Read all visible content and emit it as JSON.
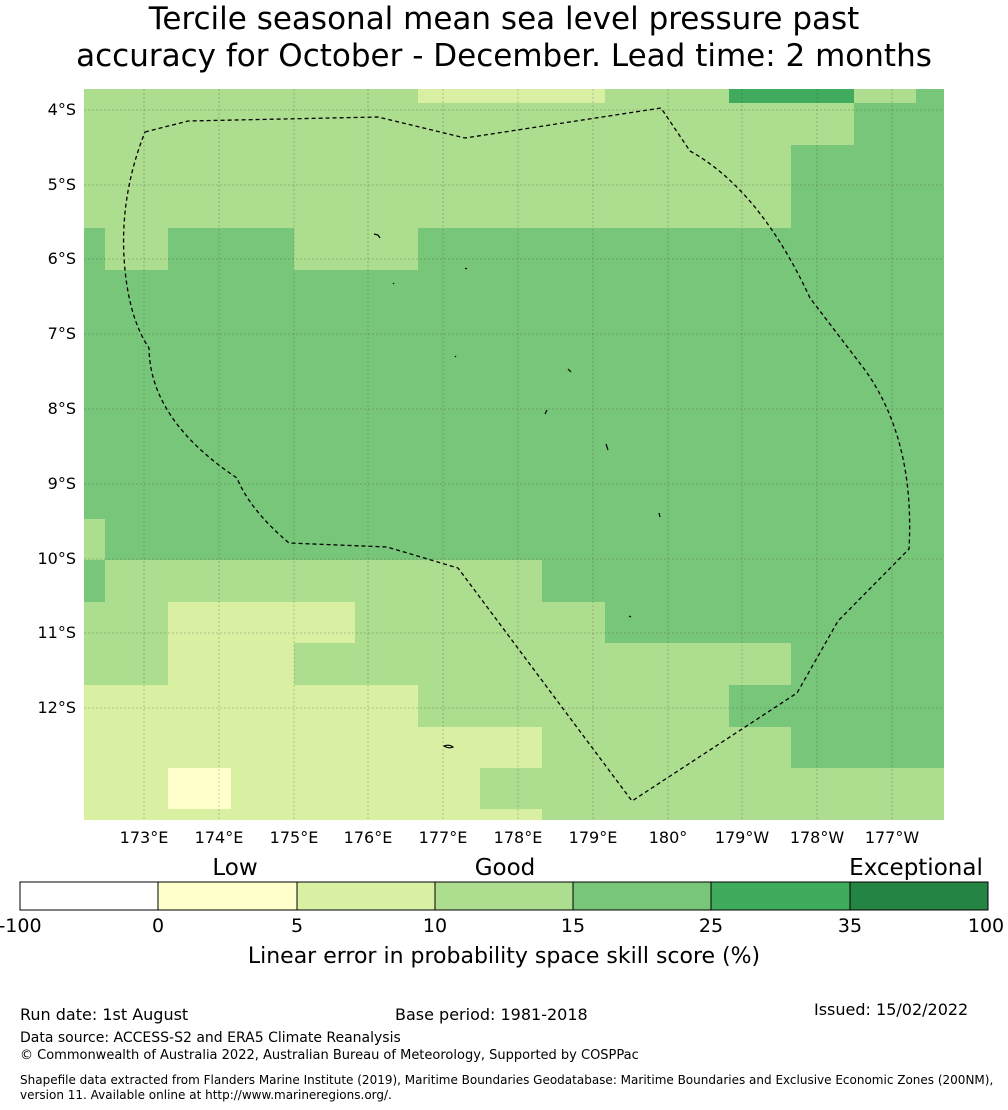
{
  "title": {
    "line1": "Tercile seasonal mean sea level pressure past",
    "line2": "accuracy for October - December. Lead time: 2 months"
  },
  "map": {
    "lat_labels": [
      "4°S",
      "5°S",
      "6°S",
      "7°S",
      "8°S",
      "9°S",
      "10°S",
      "11°S",
      "12°S"
    ],
    "lon_labels": [
      "173°E",
      "174°E",
      "175°E",
      "176°E",
      "177°E",
      "178°E",
      "179°E",
      "180°",
      "179°W",
      "178°W",
      "177°W"
    ],
    "colors": {
      "c0": "#ffffcc",
      "c5": "#d9f0a3",
      "c10": "#addd8e",
      "c15": "#78c679",
      "c25": "#41ab5d",
      "c35": "#238443"
    }
  },
  "colorbar": {
    "categories": [
      "Low",
      "Good",
      "Exceptional"
    ],
    "ticks": [
      "-100",
      "0",
      "5",
      "10",
      "15",
      "25",
      "35",
      "100"
    ],
    "colors": [
      "#ffffff",
      "#ffffcc",
      "#d9f0a3",
      "#addd8e",
      "#78c679",
      "#41ab5d",
      "#238443"
    ],
    "label": "Linear error in probability space skill score (%)"
  },
  "footer": {
    "run_date": "Run date: 1st August",
    "base_period": "Base period: 1981-2018",
    "issued": "Issued: 15/02/2022",
    "data_source": "Data source: ACCESS-S2 and ERA5 Climate Reanalysis",
    "copyright": "© Commonwealth of Australia 2022, Australian Bureau of Meteorology, Supported by COSPPac",
    "shapefile_line1": "Shapefile data extracted from Flanders Marine Institute (2019), Maritime Boundaries Geodatabase: Maritime Boundaries and Exclusive Economic Zones (200NM),",
    "shapefile_line2": "version 11. Available online at http://www.marineregions.org/."
  }
}
